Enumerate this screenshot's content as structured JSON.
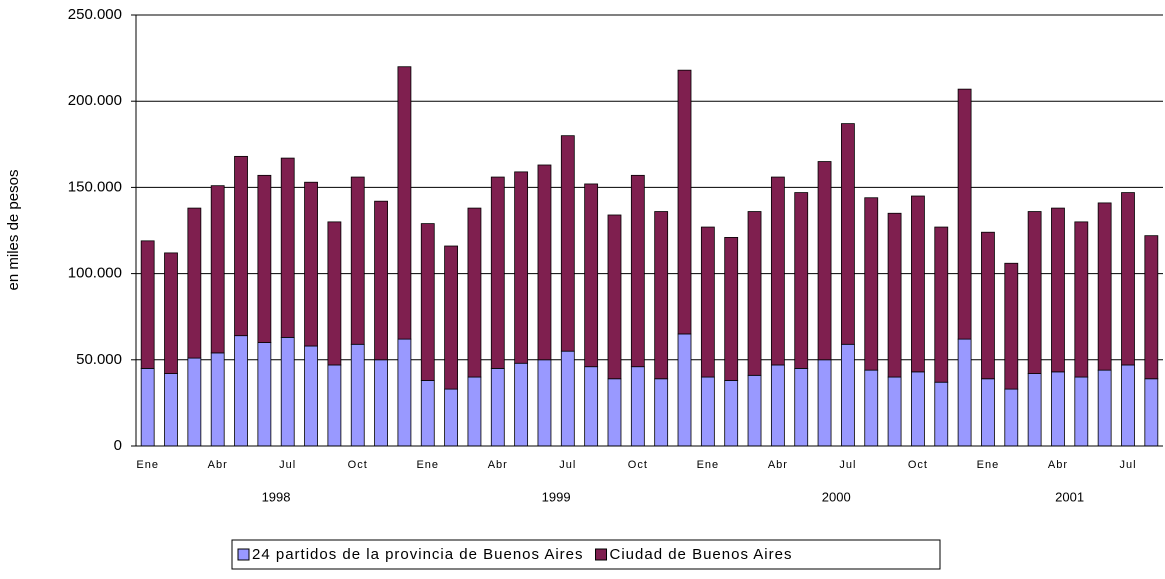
{
  "chart_data": {
    "type": "stacked_bar",
    "y_label": "en miles de pesos",
    "categories": [
      "Ene",
      null,
      null,
      "Abr",
      null,
      null,
      "Jul",
      null,
      null,
      "Oct",
      null,
      null,
      "Ene",
      null,
      null,
      "Abr",
      null,
      null,
      "Jul",
      null,
      null,
      "Oct",
      null,
      null,
      "Ene",
      null,
      null,
      "Abr",
      null,
      null,
      "Jul",
      null,
      null,
      "Oct",
      null,
      null,
      "Ene",
      null,
      null,
      "Abr",
      null,
      null,
      "Jul",
      null
    ],
    "years": [
      "1998",
      "1999",
      "2000",
      "2001"
    ],
    "series": [
      {
        "name": "24 partidos de la provincia de Buenos Aires",
        "color": "#9999ff",
        "values": [
          45000,
          42000,
          51000,
          54000,
          64000,
          60000,
          63000,
          58000,
          47000,
          59000,
          50000,
          62000,
          38000,
          33000,
          40000,
          45000,
          48000,
          50000,
          55000,
          46000,
          39000,
          46000,
          39000,
          65000,
          40000,
          38000,
          41000,
          47000,
          45000,
          50000,
          59000,
          44000,
          40000,
          43000,
          37000,
          62000,
          39000,
          33000,
          42000,
          43000,
          40000,
          44000,
          47000,
          39000
        ]
      },
      {
        "name": "Ciudad de Buenos Aires",
        "color": "#7f1f4f",
        "values": [
          74000,
          70000,
          87000,
          97000,
          104000,
          97000,
          104000,
          95000,
          83000,
          97000,
          92000,
          158000,
          91000,
          83000,
          98000,
          111000,
          111000,
          113000,
          125000,
          106000,
          95000,
          111000,
          97000,
          153000,
          87000,
          83000,
          95000,
          109000,
          102000,
          115000,
          128000,
          100000,
          95000,
          102000,
          90000,
          145000,
          85000,
          73000,
          94000,
          95000,
          90000,
          97000,
          100000,
          83000
        ]
      }
    ],
    "ylim": [
      0,
      250000
    ],
    "yticks": [
      0,
      {
        "value": 50000,
        "label": "50.000"
      },
      {
        "value": 100000,
        "label": "100.000"
      },
      {
        "value": 150000,
        "label": "150.000"
      },
      {
        "value": 200000,
        "label": "200.000"
      },
      {
        "value": 250000,
        "label": "250.000"
      }
    ],
    "grid": true
  }
}
